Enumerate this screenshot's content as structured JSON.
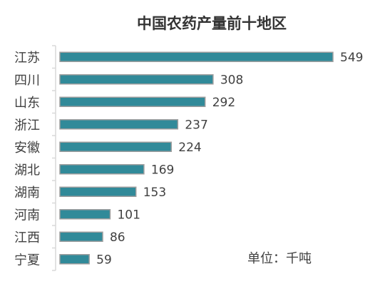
{
  "chart_data": {
    "type": "bar",
    "orientation": "horizontal",
    "title": "中国农药产量前十地区",
    "unit_note": "单位：千吨",
    "categories": [
      "江苏",
      "四川",
      "山东",
      "浙江",
      "安徽",
      "湖北",
      "湖南",
      "河南",
      "江西",
      "宁夏"
    ],
    "values": [
      549,
      308,
      292,
      237,
      224,
      169,
      153,
      101,
      86,
      59
    ],
    "xlim": [
      0,
      549
    ],
    "grid": false,
    "legend": "none",
    "bar_color": "#318A99",
    "bar_outline_color": "#9E9E9E",
    "axis_color": "#D9D9D9",
    "data_labels": true
  }
}
